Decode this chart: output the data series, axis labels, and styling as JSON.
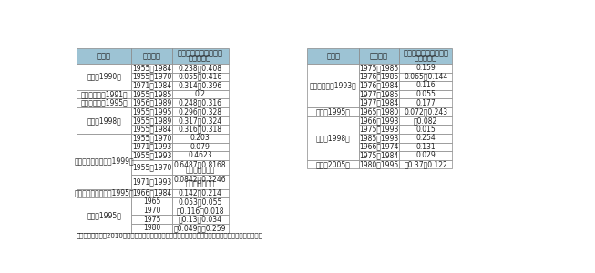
{
  "caption": "資料）　李紅梅（2010）「日本における社会資本の生産力効果に関する文献研究」より国土交通省作成",
  "header_bg": "#9dc3d4",
  "border_color": "#888888",
  "left_table": {
    "headers": [
      "研究者",
      "推計期間",
      "社会資本の生産力効果\n（弾性値）"
    ],
    "rows": [
      [
        "岩本（1990）",
        "1955～1984",
        "0.238～0.408"
      ],
      [
        "岩本（1990）",
        "1955～1970",
        "0.055～0.416"
      ],
      [
        "岩本（1990）",
        "1971～1984",
        "0.314～0.396"
      ],
      [
        "竹中・石川（1991）",
        "1955～1985",
        "0.2"
      ],
      [
        "三井・井上（1995）",
        "1956～1989",
        "0.248～0.316"
      ],
      [
        "畑農（1998）",
        "1955～1995",
        "0.296～0.328"
      ],
      [
        "畑農（1998）",
        "1955～1989",
        "0.317～0.324"
      ],
      [
        "畑農（1998）",
        "1955～1984",
        "0.316～0.318"
      ],
      [
        "吉野・中峳・中東（1999）",
        "1955～1970",
        "0.203"
      ],
      [
        "吉野・中峳・中東（1999）",
        "1971～1993",
        "0.079"
      ],
      [
        "吉野・中峳・中東（1999）",
        "1955～1993",
        "0.4623"
      ],
      [
        "吉野・中峳・中東（1999）",
        "1955～1970",
        "0.6487～0.8168\n（限界生産性）"
      ],
      [
        "吉野・中峳・中東（1999）",
        "1971～1993",
        "0.0842～0.2246\n（限界生産性）"
      ],
      [
        "三井・竹沢・河内（1995）",
        "1966～1984",
        "0.142～0.214"
      ],
      [
        "奖井（1995）",
        "1965",
        "0.053～0.055"
      ],
      [
        "奖井（1995）",
        "1970",
        "－0.116～0.018"
      ],
      [
        "奖井（1995）",
        "1975",
        "－0.13～0.034"
      ],
      [
        "奖井（1995）",
        "1980",
        "－0.049～－0.259"
      ]
    ],
    "researcher_groups": [
      {
        "name": "岩本（1990）",
        "start": 0,
        "end": 2
      },
      {
        "name": "竹中・石川（1991）",
        "start": 3,
        "end": 3
      },
      {
        "name": "三井・井上（1995）",
        "start": 4,
        "end": 4
      },
      {
        "name": "畑農（1998）",
        "start": 5,
        "end": 7
      },
      {
        "name": "吉野・中峳・中東（1999）",
        "start": 8,
        "end": 12
      },
      {
        "name": "三井・竹沢・河内（1995）",
        "start": 13,
        "end": 13
      },
      {
        "name": "奖井（1995）",
        "start": 14,
        "end": 17
      }
    ]
  },
  "right_table": {
    "headers": [
      "研究者",
      "推計期間",
      "社会資本の生産力効果\n（弾性値）"
    ],
    "rows": [
      [
        "浅子・坂本（1993）",
        "1975～1985",
        "0.159"
      ],
      [
        "浅子・坂本（1993）",
        "1976～1985",
        "0.065～0.144"
      ],
      [
        "浅子・坂本（1993）",
        "1976～1984",
        "0.116"
      ],
      [
        "浅子・坂本（1993）",
        "1977～1985",
        "0.055"
      ],
      [
        "浅子・坂本（1993）",
        "1977～1984",
        "0.177"
      ],
      [
        "奖井（1995）",
        "1965～1980",
        "0.072～0.243"
      ],
      [
        "土居（1998）",
        "1966～1993",
        "－0.082"
      ],
      [
        "土居（1998）",
        "1975～1993",
        "0.015"
      ],
      [
        "土居（1998）",
        "1985～1993",
        "0.254"
      ],
      [
        "土居（1998）",
        "1966～1974",
        "0.131"
      ],
      [
        "土居（1998）",
        "1975～1984",
        "0.029"
      ],
      [
        "塩路（2005）",
        "1980～1995",
        "－0.37～0.122"
      ]
    ],
    "researcher_groups": [
      {
        "name": "浅子・坂本（1993）",
        "start": 0,
        "end": 4
      },
      {
        "name": "奖井（1995）",
        "start": 5,
        "end": 5
      },
      {
        "name": "土居（1998）",
        "start": 6,
        "end": 10
      },
      {
        "name": "塩路（2005）",
        "start": 11,
        "end": 11
      }
    ]
  }
}
